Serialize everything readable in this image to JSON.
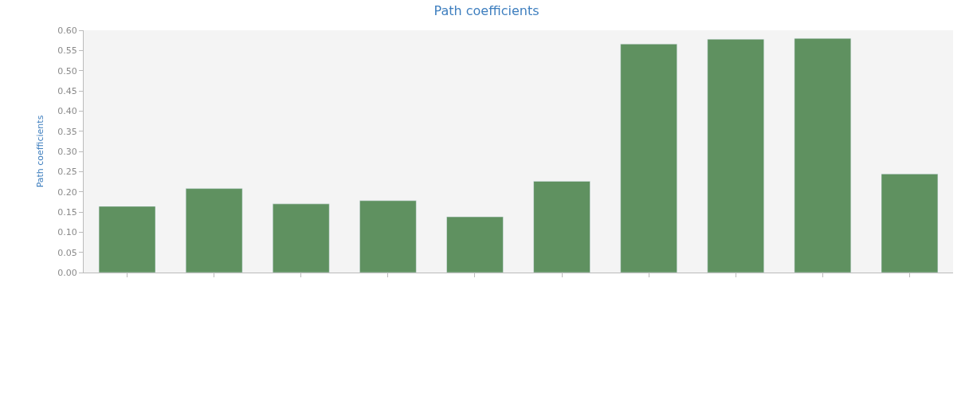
{
  "chart_data": {
    "type": "bar",
    "title": "Path coefficients",
    "ylabel": "Path coefficients",
    "categories": [
      null,
      null,
      null,
      null,
      null,
      null,
      null,
      null,
      null,
      null
    ],
    "values": [
      0.164,
      0.208,
      0.17,
      0.178,
      0.138,
      0.226,
      0.566,
      0.578,
      0.58,
      0.244
    ],
    "color": "#5f9160",
    "ylim": [
      0,
      0.6
    ],
    "yticks": [
      {
        "value": 0,
        "label": "0.00"
      },
      {
        "value": 0.05,
        "label": "0.05"
      },
      {
        "value": 0.1,
        "label": "0.10"
      },
      {
        "value": 0.15,
        "label": "0.15"
      },
      {
        "value": 0.2,
        "label": "0.20"
      },
      {
        "value": 0.25,
        "label": "0.25"
      },
      {
        "value": 0.3,
        "label": "0.30"
      },
      {
        "value": 0.35,
        "label": "0.35"
      },
      {
        "value": 0.4,
        "label": "0.40"
      },
      {
        "value": 0.45,
        "label": "0.45"
      },
      {
        "value": 0.5,
        "label": "0.50"
      },
      {
        "value": 0.55,
        "label": "0.55"
      },
      {
        "value": 0.6,
        "label": "0.60"
      }
    ],
    "grid": false
  }
}
